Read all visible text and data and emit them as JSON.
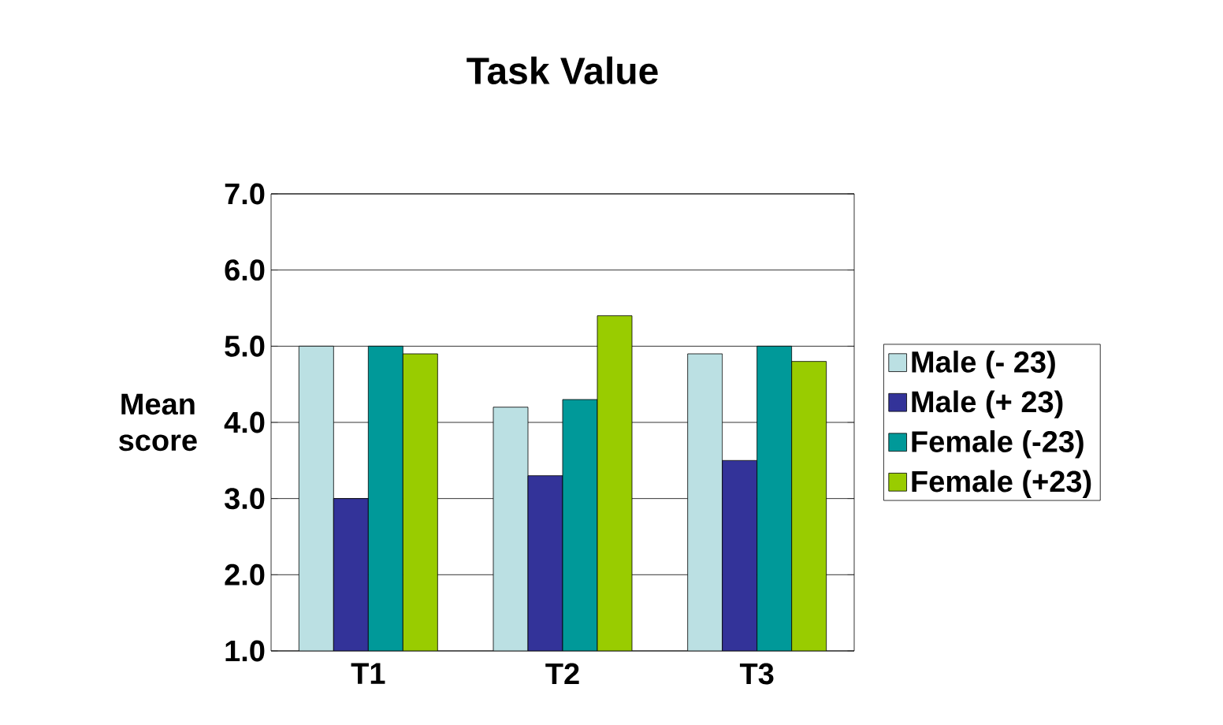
{
  "chart_data": {
    "type": "bar",
    "title": "Task Value",
    "ylabel": "Mean score",
    "categories": [
      "T1",
      "T2",
      "T3"
    ],
    "series": [
      {
        "name": "Male (- 23)",
        "color": "#bbe0e3",
        "values": [
          5.0,
          4.2,
          4.9
        ]
      },
      {
        "name": "Male (+ 23)",
        "color": "#333399",
        "values": [
          3.0,
          3.3,
          3.5
        ]
      },
      {
        "name": "Female (-23)",
        "color": "#009999",
        "values": [
          5.0,
          4.3,
          5.0
        ]
      },
      {
        "name": "Female (+23)",
        "color": "#99cc00",
        "values": [
          4.9,
          5.4,
          4.8
        ]
      }
    ],
    "ylim": [
      1,
      7
    ],
    "yticks": [
      {
        "value": 1,
        "label": "1.0"
      },
      {
        "value": 2,
        "label": "2.0"
      },
      {
        "value": 3,
        "label": "3.0"
      },
      {
        "value": 4,
        "label": "4.0"
      },
      {
        "value": 5,
        "label": "5.0"
      },
      {
        "value": 6,
        "label": "6.0"
      },
      {
        "value": 7,
        "label": "7.0"
      }
    ],
    "grid": "y",
    "legend": "right"
  }
}
